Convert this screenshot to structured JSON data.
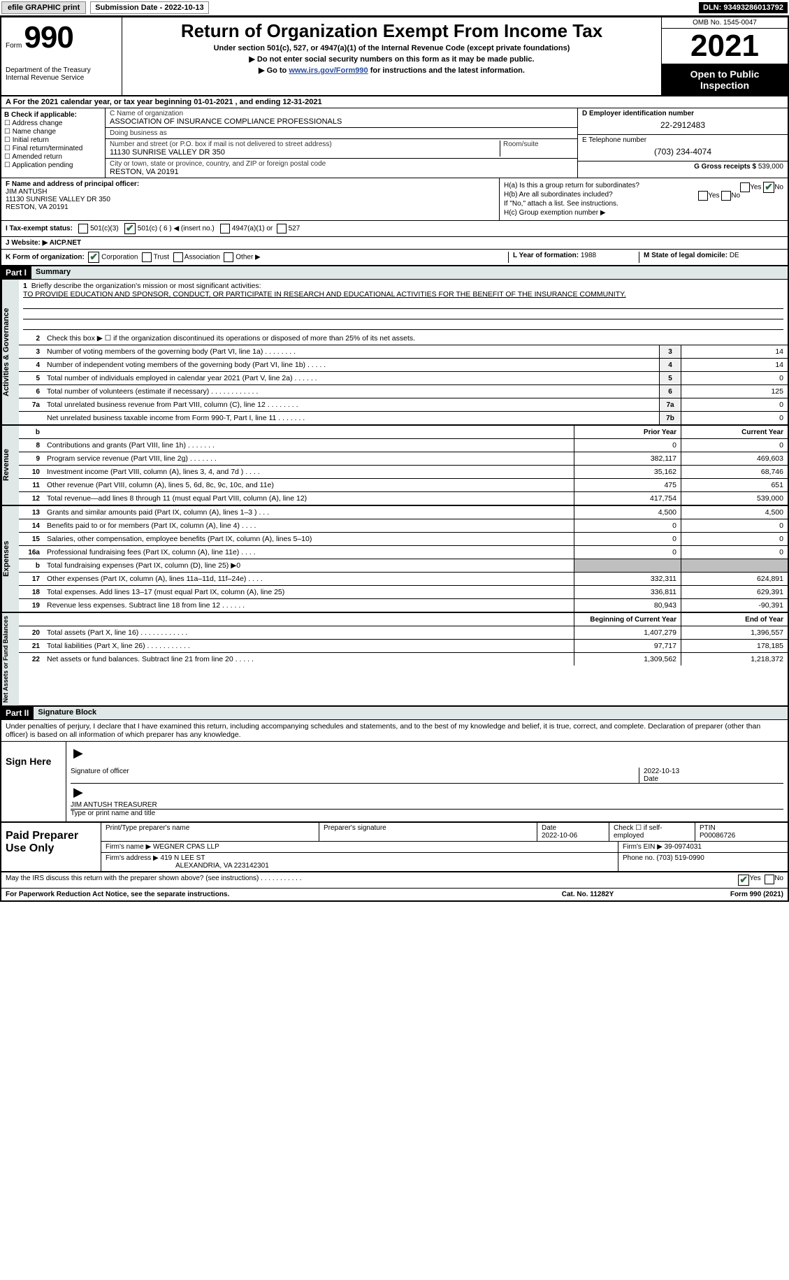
{
  "topbar": {
    "efile": "efile GRAPHIC print",
    "subdate_label": "Submission Date - ",
    "subdate": "2022-10-13",
    "dln": "DLN: 93493286013792"
  },
  "header": {
    "form_label": "Form",
    "form_number": "990",
    "dept": "Department of the Treasury\nInternal Revenue Service",
    "title": "Return of Organization Exempt From Income Tax",
    "sub1": "Under section 501(c), 527, or 4947(a)(1) of the Internal Revenue Code (except private foundations)",
    "sub2": "▶ Do not enter social security numbers on this form as it may be made public.",
    "sub3_prefix": "▶ Go to ",
    "sub3_link": "www.irs.gov/Form990",
    "sub3_suffix": " for instructions and the latest information.",
    "omb": "OMB No. 1545-0047",
    "year": "2021",
    "open": "Open to Public Inspection"
  },
  "rowA": "A For the 2021 calendar year, or tax year beginning 01-01-2021    , and ending 12-31-2021",
  "colB": {
    "label": "B Check if applicable:",
    "items": [
      "Address change",
      "Name change",
      "Initial return",
      "Final return/terminated",
      "Amended return",
      "Application pending"
    ]
  },
  "colC": {
    "name_label": "C Name of organization",
    "name": "ASSOCIATION OF INSURANCE COMPLIANCE PROFESSIONALS",
    "dba_label": "Doing business as",
    "dba": "",
    "addr_label": "Number and street (or P.O. box if mail is not delivered to street address)",
    "addr": "11130 SUNRISE VALLEY DR 350",
    "room_label": "Room/suite",
    "city_label": "City or town, state or province, country, and ZIP or foreign postal code",
    "city": "RESTON, VA  20191"
  },
  "colD": {
    "ein_label": "D Employer identification number",
    "ein": "22-2912483",
    "phone_label": "E Telephone number",
    "phone": "(703) 234-4074",
    "gross_label": "G Gross receipts $ ",
    "gross": "539,000"
  },
  "colF": {
    "label": "F  Name and address of principal officer:",
    "name": "JIM ANTUSH",
    "addr1": "11130 SUNRISE VALLEY DR 350",
    "addr2": "RESTON, VA  20191"
  },
  "colH": {
    "ha": "H(a)  Is this a group return for subordinates?",
    "hb": "H(b)  Are all subordinates included?",
    "hb_note": "If \"No,\" attach a list. See instructions.",
    "hc": "H(c)  Group exemption number ▶",
    "yes": "Yes",
    "no": "No"
  },
  "rowI": {
    "label": "I   Tax-exempt status:",
    "c3": "501(c)(3)",
    "c": "501(c) ( ",
    "c_num": "6",
    "c_suffix": " ) ◀ (insert no.)",
    "a4947": "4947(a)(1) or",
    "s527": "527"
  },
  "rowJ": {
    "label": "J   Website: ▶",
    "value": "AICP.NET"
  },
  "rowK": {
    "label": "K Form of organization:",
    "corp": "Corporation",
    "trust": "Trust",
    "assoc": "Association",
    "other": "Other ▶",
    "year_label": "L Year of formation: ",
    "year": "1988",
    "state_label": "M State of legal domicile: ",
    "state": "DE"
  },
  "part1": {
    "label": "Part I",
    "title": "Summary"
  },
  "summary": {
    "side1": "Activities & Governance",
    "side2": "Revenue",
    "side3": "Expenses",
    "side4": "Net Assets or Fund Balances",
    "mission_label": "Briefly describe the organization's mission or most significant activities:",
    "mission": "TO PROVIDE EDUCATION AND SPONSOR, CONDUCT, OR PARTICIPATE IN RESEARCH AND EDUCATIONAL ACTIVITIES FOR THE BENEFIT OF THE INSURANCE COMMUNITY.",
    "line2": "Check this box ▶ ☐  if the organization discontinued its operations or disposed of more than 25% of its net assets.",
    "lines_ag": [
      {
        "n": "3",
        "t": "Number of voting members of the governing body (Part VI, line 1a)   .    .    .    .    .    .    .    .",
        "box": "3",
        "v": "14"
      },
      {
        "n": "4",
        "t": "Number of independent voting members of the governing body (Part VI, line 1b)   .    .    .    .    .",
        "box": "4",
        "v": "14"
      },
      {
        "n": "5",
        "t": "Total number of individuals employed in calendar year 2021 (Part V, line 2a)   .    .    .    .    .    .",
        "box": "5",
        "v": "0"
      },
      {
        "n": "6",
        "t": "Total number of volunteers (estimate if necessary)    .    .    .    .    .    .    .    .    .    .    .    .",
        "box": "6",
        "v": "125"
      },
      {
        "n": "7a",
        "t": "Total unrelated business revenue from Part VIII, column (C), line 12   .    .    .    .    .    .    .    .",
        "box": "7a",
        "v": "0"
      },
      {
        "n": "",
        "t": "Net unrelated business taxable income from Form 990-T, Part I, line 11   .    .    .    .    .    .    .",
        "box": "7b",
        "v": "0"
      }
    ],
    "col_prior": "Prior Year",
    "col_current": "Current Year",
    "lines_rev": [
      {
        "n": "8",
        "t": "Contributions and grants (Part VIII, line 1h)   .    .    .    .    .    .    .",
        "p": "0",
        "c": "0"
      },
      {
        "n": "9",
        "t": "Program service revenue (Part VIII, line 2g)   .    .    .    .    .    .    .",
        "p": "382,117",
        "c": "469,603"
      },
      {
        "n": "10",
        "t": "Investment income (Part VIII, column (A), lines 3, 4, and 7d )   .    .    .    .",
        "p": "35,162",
        "c": "68,746"
      },
      {
        "n": "11",
        "t": "Other revenue (Part VIII, column (A), lines 5, 6d, 8c, 9c, 10c, and 11e)",
        "p": "475",
        "c": "651"
      },
      {
        "n": "12",
        "t": "Total revenue—add lines 8 through 11 (must equal Part VIII, column (A), line 12)",
        "p": "417,754",
        "c": "539,000"
      }
    ],
    "lines_exp": [
      {
        "n": "13",
        "t": "Grants and similar amounts paid (Part IX, column (A), lines 1–3 )   .    .    .",
        "p": "4,500",
        "c": "4,500"
      },
      {
        "n": "14",
        "t": "Benefits paid to or for members (Part IX, column (A), line 4)   .    .    .    .",
        "p": "0",
        "c": "0"
      },
      {
        "n": "15",
        "t": "Salaries, other compensation, employee benefits (Part IX, column (A), lines 5–10)",
        "p": "0",
        "c": "0"
      },
      {
        "n": "16a",
        "t": "Professional fundraising fees (Part IX, column (A), line 11e)   .    .    .    .",
        "p": "0",
        "c": "0"
      },
      {
        "n": "b",
        "t": "Total fundraising expenses (Part IX, column (D), line 25) ▶0",
        "p": "",
        "c": "",
        "shade": true
      },
      {
        "n": "17",
        "t": "Other expenses (Part IX, column (A), lines 11a–11d, 11f–24e)   .    .    .    .",
        "p": "332,311",
        "c": "624,891"
      },
      {
        "n": "18",
        "t": "Total expenses. Add lines 13–17 (must equal Part IX, column (A), line 25)",
        "p": "336,811",
        "c": "629,391"
      },
      {
        "n": "19",
        "t": "Revenue less expenses. Subtract line 18 from line 12   .    .    .    .    .    .",
        "p": "80,943",
        "c": "-90,391"
      }
    ],
    "col_begin": "Beginning of Current Year",
    "col_end": "End of Year",
    "lines_net": [
      {
        "n": "20",
        "t": "Total assets (Part X, line 16)   .    .    .    .    .    .    .    .    .    .    .    .",
        "p": "1,407,279",
        "c": "1,396,557"
      },
      {
        "n": "21",
        "t": "Total liabilities (Part X, line 26)   .    .    .    .    .    .    .    .    .    .    .",
        "p": "97,717",
        "c": "178,185"
      },
      {
        "n": "22",
        "t": "Net assets or fund balances. Subtract line 21 from line 20   .    .    .    .    .",
        "p": "1,309,562",
        "c": "1,218,372"
      }
    ]
  },
  "part2": {
    "label": "Part II",
    "title": "Signature Block"
  },
  "sig": {
    "penalties": "Under penalties of perjury, I declare that I have examined this return, including accompanying schedules and statements, and to the best of my knowledge and belief, it is true, correct, and complete. Declaration of preparer (other than officer) is based on all information of which preparer has any knowledge.",
    "sign_here": "Sign Here",
    "sig_officer": "Signature of officer",
    "date": "Date",
    "sig_date": "2022-10-13",
    "name_title": "JIM ANTUSH  TREASURER",
    "name_label": "Type or print name and title"
  },
  "prep": {
    "label": "Paid Preparer Use Only",
    "print_label": "Print/Type preparer's name",
    "print_name": "",
    "sig_label": "Preparer's signature",
    "date_label": "Date",
    "date": "2022-10-06",
    "check_label": "Check ☐ if self-employed",
    "ptin_label": "PTIN",
    "ptin": "P00086726",
    "firm_name_label": "Firm's name      ▶ ",
    "firm_name": "WEGNER CPAS LLP",
    "firm_ein_label": "Firm's EIN ▶ ",
    "firm_ein": "39-0974031",
    "firm_addr_label": "Firm's address ▶ ",
    "firm_addr1": "419 N LEE ST",
    "firm_addr2": "ALEXANDRIA, VA  223142301",
    "phone_label": "Phone no. ",
    "phone": "(703) 519-0990"
  },
  "footer": {
    "question": "May the IRS discuss this return with the preparer shown above? (see instructions)   .    .    .    .    .    .    .    .    .    .    .",
    "yes": "Yes",
    "no": "No",
    "paperwork": "For Paperwork Reduction Act Notice, see the separate instructions.",
    "cat": "Cat. No. 11282Y",
    "form": "Form 990 (2021)"
  }
}
